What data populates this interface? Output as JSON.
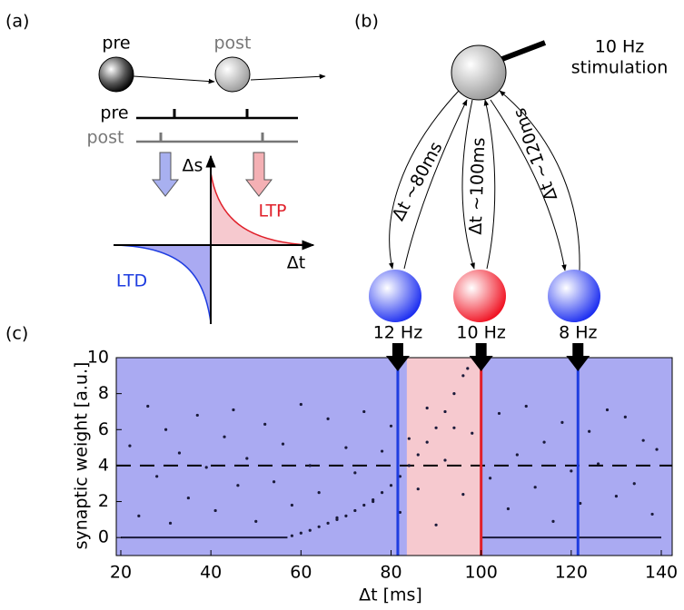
{
  "diagram": {
    "a": {
      "label": "(a)",
      "pre": "pre",
      "post": "post",
      "pre_row": "pre",
      "post_row": "post",
      "y_axis": "Δs",
      "x_axis": "Δt",
      "ltp": "LTP",
      "ltd": "LTD"
    },
    "b": {
      "label": "(b)",
      "stimulation": [
        "10 Hz",
        "stimulation"
      ],
      "delays": [
        "Δt ~80ms",
        "Δt ~100ms",
        "Δt ~120ms"
      ],
      "rates": [
        "12 Hz",
        "10 Hz",
        "8 Hz"
      ]
    }
  },
  "chart_data": {
    "type": "scatter",
    "label": "(c)",
    "xlabel": "Δt [ms]",
    "ylabel": "synaptic weight [a.u.]",
    "xlim": [
      20,
      140
    ],
    "ylim": [
      -1,
      10
    ],
    "xticks": [
      20,
      40,
      60,
      80,
      100,
      120,
      140
    ],
    "yticks": [
      0,
      2,
      4,
      6,
      8,
      10
    ],
    "background_color": "#aaaaf2",
    "band": [
      83.5,
      100
    ],
    "band_color": "#f6c9cf",
    "threshold": 4,
    "markers": [
      {
        "x": 81.5,
        "color": "#1f3de0"
      },
      {
        "x": 100,
        "color": "#e0202a"
      },
      {
        "x": 121.5,
        "color": "#1f3de0"
      }
    ],
    "series": [
      {
        "mode": "markers",
        "color": "#1a1a3a",
        "x": [
          22,
          24,
          26,
          28,
          30,
          31,
          33,
          35,
          37,
          39,
          41,
          43,
          45,
          46,
          48,
          50,
          52,
          54,
          56,
          58,
          60,
          62,
          64,
          66,
          68,
          70,
          72,
          74,
          76,
          78,
          80,
          82,
          84,
          86,
          88,
          90,
          92,
          94,
          96,
          98,
          102,
          104,
          106,
          108,
          110,
          112,
          114,
          116,
          118,
          120,
          122,
          124,
          126,
          128,
          130,
          132,
          134,
          136,
          138,
          139
        ],
        "values": [
          5.1,
          1.2,
          7.3,
          3.4,
          6.0,
          0.8,
          4.7,
          2.2,
          6.8,
          3.9,
          1.5,
          5.6,
          7.1,
          2.9,
          4.4,
          0.9,
          6.3,
          3.1,
          5.2,
          1.8,
          7.4,
          4.0,
          2.5,
          6.6,
          1.1,
          5.0,
          3.6,
          7.0,
          2.0,
          4.8,
          6.2,
          1.4,
          5.5,
          2.7,
          7.2,
          0.7,
          4.3,
          6.1,
          2.4,
          5.8,
          3.3,
          6.9,
          1.6,
          4.6,
          7.3,
          2.8,
          5.3,
          0.9,
          6.4,
          3.7,
          1.9,
          5.9,
          4.1,
          7.1,
          2.3,
          6.7,
          3.0,
          5.4,
          1.3,
          4.9
        ]
      },
      {
        "mode": "markers",
        "color": "#1a1a3a",
        "x": [
          58,
          60,
          62,
          64,
          66,
          68,
          70,
          72,
          74,
          76,
          78,
          80,
          82,
          84,
          86,
          88,
          90,
          92,
          94,
          96,
          97
        ],
        "values": [
          0.1,
          0.25,
          0.4,
          0.6,
          0.8,
          1.0,
          1.2,
          1.5,
          1.8,
          2.1,
          2.5,
          2.9,
          3.4,
          4.0,
          4.6,
          5.3,
          6.1,
          7.0,
          8.0,
          9.0,
          9.4
        ]
      },
      {
        "mode": "lines",
        "color": "#1a1a3a",
        "x": [
          20,
          57
        ],
        "values": [
          0,
          0
        ]
      },
      {
        "mode": "lines",
        "color": "#1a1a3a",
        "x": [
          100,
          140
        ],
        "values": [
          0,
          0
        ]
      }
    ]
  }
}
